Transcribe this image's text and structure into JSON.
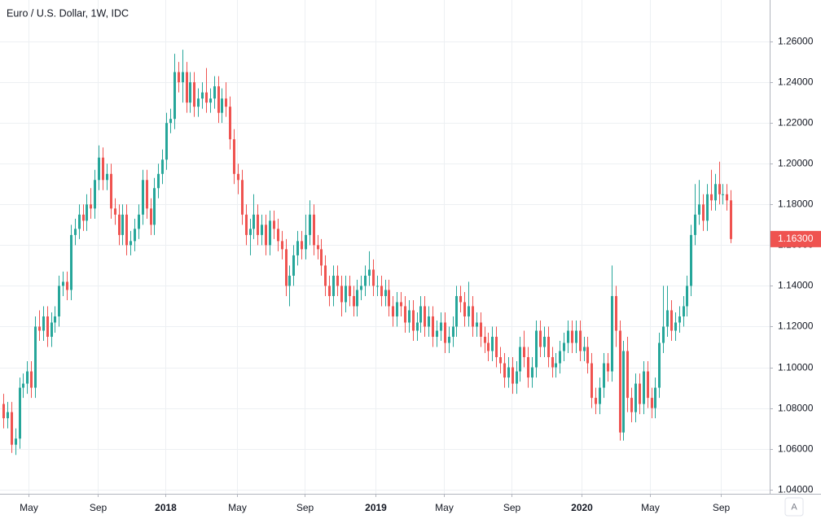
{
  "chart_data": {
    "type": "candlestick",
    "title": "Euro / U.S. Dollar, 1W, IDC",
    "up_color": "#26a69a",
    "down_color": "#ef5350",
    "grid": true,
    "xlim": [
      -0.82,
      192.8
    ],
    "xticks": [
      {
        "value": 6.4,
        "label": "May"
      },
      {
        "value": 23.8,
        "label": "Sep"
      },
      {
        "value": 40.8,
        "label": "2018"
      },
      {
        "value": 58.8,
        "label": "May"
      },
      {
        "value": 75.8,
        "label": "Sep"
      },
      {
        "value": 93.6,
        "label": "2019"
      },
      {
        "value": 110.9,
        "label": "May"
      },
      {
        "value": 127.9,
        "label": "Sep"
      },
      {
        "value": 145.5,
        "label": "2020"
      },
      {
        "value": 162.7,
        "label": "May"
      },
      {
        "value": 180.5,
        "label": "Sep"
      }
    ],
    "ylim": [
      1.0379,
      1.2804
    ],
    "yticks": [
      {
        "value": 1.04,
        "label": "1.04000"
      },
      {
        "value": 1.06,
        "label": "1.06000"
      },
      {
        "value": 1.08,
        "label": "1.08000"
      },
      {
        "value": 1.1,
        "label": "1.10000"
      },
      {
        "value": 1.12,
        "label": "1.12000"
      },
      {
        "value": 1.14,
        "label": "1.14000"
      },
      {
        "value": 1.16,
        "label": "1.16000"
      },
      {
        "value": 1.18,
        "label": "1.18000"
      },
      {
        "value": 1.2,
        "label": "1.20000"
      },
      {
        "value": 1.22,
        "label": "1.22000"
      },
      {
        "value": 1.24,
        "label": "1.24000"
      },
      {
        "value": 1.26,
        "label": "1.26000"
      }
    ],
    "last_price": {
      "value": 1.163,
      "label": "1.16300"
    },
    "open": [
      1.082,
      1.075,
      1.078,
      1.062,
      1.065,
      1.09,
      1.092,
      1.098,
      1.09,
      1.12,
      1.118,
      1.125,
      1.115,
      1.122,
      1.125,
      1.14,
      1.142,
      1.138,
      1.165,
      1.168,
      1.175,
      1.172,
      1.18,
      1.178,
      1.192,
      1.203,
      1.192,
      1.195,
      1.178,
      1.175,
      1.165,
      1.175,
      1.16,
      1.162,
      1.168,
      1.175,
      1.192,
      1.178,
      1.17,
      1.188,
      1.195,
      1.202,
      1.22,
      1.222,
      1.245,
      1.24,
      1.245,
      1.23,
      1.24,
      1.228,
      1.232,
      1.235,
      1.23,
      1.232,
      1.238,
      1.225,
      1.232,
      1.228,
      1.212,
      1.195,
      1.192,
      1.175,
      1.165,
      1.168,
      1.175,
      1.165,
      1.17,
      1.16,
      1.172,
      1.168,
      1.162,
      1.158,
      1.14,
      1.145,
      1.155,
      1.162,
      1.158,
      1.165,
      1.175,
      1.16,
      1.158,
      1.15,
      1.14,
      1.135,
      1.145,
      1.14,
      1.132,
      1.14,
      1.135,
      1.13,
      1.138,
      1.14,
      1.145,
      1.148,
      1.14,
      1.14,
      1.135,
      1.138,
      1.13,
      1.125,
      1.132,
      1.13,
      1.122,
      1.128,
      1.118,
      1.122,
      1.13,
      1.12,
      1.125,
      1.115,
      1.118,
      1.122,
      1.112,
      1.115,
      1.12,
      1.135,
      1.132,
      1.125,
      1.13,
      1.12,
      1.122,
      1.115,
      1.112,
      1.108,
      1.115,
      1.105,
      1.102,
      1.095,
      1.1,
      1.092,
      1.098,
      1.11,
      1.105,
      1.095,
      1.1,
      1.118,
      1.11,
      1.115,
      1.105,
      1.1,
      1.102,
      1.108,
      1.112,
      1.118,
      1.112,
      1.118,
      1.108,
      1.11,
      1.102,
      1.085,
      1.082,
      1.09,
      1.102,
      1.098,
      1.135,
      1.118,
      1.068,
      1.108,
      1.085,
      1.078,
      1.092,
      1.082,
      1.098,
      1.085,
      1.08,
      1.09,
      1.112,
      1.12,
      1.128,
      1.118,
      1.122,
      1.125,
      1.13,
      1.14,
      1.165,
      1.175,
      1.18,
      1.172,
      1.185,
      1.182,
      1.19,
      1.185,
      1.185,
      1.182
    ],
    "high": [
      1.087,
      1.083,
      1.083,
      1.07,
      1.095,
      1.097,
      1.103,
      1.103,
      1.125,
      1.128,
      1.13,
      1.13,
      1.127,
      1.13,
      1.145,
      1.147,
      1.147,
      1.17,
      1.173,
      1.18,
      1.18,
      1.185,
      1.188,
      1.197,
      1.209,
      1.208,
      1.2,
      1.2,
      1.183,
      1.18,
      1.18,
      1.18,
      1.167,
      1.173,
      1.18,
      1.197,
      1.197,
      1.183,
      1.193,
      1.2,
      1.207,
      1.225,
      1.227,
      1.254,
      1.25,
      1.256,
      1.25,
      1.245,
      1.245,
      1.237,
      1.24,
      1.247,
      1.237,
      1.243,
      1.243,
      1.237,
      1.24,
      1.233,
      1.217,
      1.2,
      1.197,
      1.18,
      1.173,
      1.185,
      1.18,
      1.175,
      1.175,
      1.177,
      1.177,
      1.173,
      1.167,
      1.163,
      1.15,
      1.16,
      1.167,
      1.167,
      1.175,
      1.182,
      1.18,
      1.165,
      1.163,
      1.155,
      1.145,
      1.15,
      1.15,
      1.145,
      1.145,
      1.145,
      1.14,
      1.143,
      1.145,
      1.15,
      1.157,
      1.153,
      1.145,
      1.145,
      1.143,
      1.143,
      1.135,
      1.137,
      1.137,
      1.135,
      1.133,
      1.133,
      1.127,
      1.135,
      1.135,
      1.13,
      1.13,
      1.123,
      1.127,
      1.127,
      1.12,
      1.125,
      1.14,
      1.14,
      1.137,
      1.142,
      1.135,
      1.127,
      1.127,
      1.12,
      1.117,
      1.12,
      1.12,
      1.11,
      1.107,
      1.105,
      1.105,
      1.103,
      1.115,
      1.118,
      1.11,
      1.105,
      1.123,
      1.123,
      1.12,
      1.12,
      1.11,
      1.107,
      1.113,
      1.117,
      1.123,
      1.123,
      1.123,
      1.123,
      1.115,
      1.115,
      1.107,
      1.09,
      1.095,
      1.107,
      1.107,
      1.15,
      1.14,
      1.123,
      1.113,
      1.115,
      1.09,
      1.097,
      1.097,
      1.103,
      1.103,
      1.09,
      1.095,
      1.117,
      1.14,
      1.14,
      1.133,
      1.127,
      1.13,
      1.135,
      1.145,
      1.17,
      1.19,
      1.192,
      1.185,
      1.19,
      1.197,
      1.195,
      1.201,
      1.19,
      1.19,
      1.187
    ],
    "low": [
      1.07,
      1.07,
      1.058,
      1.057,
      1.06,
      1.085,
      1.087,
      1.085,
      1.085,
      1.113,
      1.113,
      1.11,
      1.11,
      1.117,
      1.12,
      1.135,
      1.133,
      1.133,
      1.16,
      1.163,
      1.167,
      1.167,
      1.173,
      1.173,
      1.187,
      1.187,
      1.187,
      1.173,
      1.17,
      1.16,
      1.16,
      1.155,
      1.155,
      1.157,
      1.163,
      1.17,
      1.173,
      1.165,
      1.165,
      1.183,
      1.19,
      1.197,
      1.215,
      1.217,
      1.235,
      1.23,
      1.225,
      1.225,
      1.223,
      1.223,
      1.227,
      1.225,
      1.225,
      1.227,
      1.22,
      1.22,
      1.223,
      1.207,
      1.19,
      1.185,
      1.17,
      1.16,
      1.155,
      1.163,
      1.16,
      1.16,
      1.155,
      1.155,
      1.163,
      1.157,
      1.153,
      1.135,
      1.13,
      1.14,
      1.15,
      1.153,
      1.153,
      1.16,
      1.155,
      1.153,
      1.145,
      1.135,
      1.13,
      1.13,
      1.135,
      1.125,
      1.127,
      1.13,
      1.125,
      1.125,
      1.133,
      1.135,
      1.14,
      1.135,
      1.135,
      1.13,
      1.13,
      1.125,
      1.12,
      1.12,
      1.125,
      1.117,
      1.117,
      1.113,
      1.113,
      1.117,
      1.115,
      1.115,
      1.11,
      1.11,
      1.113,
      1.107,
      1.107,
      1.11,
      1.115,
      1.127,
      1.12,
      1.12,
      1.115,
      1.115,
      1.11,
      1.107,
      1.103,
      1.103,
      1.1,
      1.097,
      1.09,
      1.09,
      1.087,
      1.087,
      1.093,
      1.1,
      1.09,
      1.09,
      1.095,
      1.105,
      1.105,
      1.1,
      1.095,
      1.095,
      1.097,
      1.103,
      1.107,
      1.107,
      1.107,
      1.103,
      1.103,
      1.097,
      1.08,
      1.077,
      1.077,
      1.085,
      1.093,
      1.093,
      1.11,
      1.064,
      1.064,
      1.078,
      1.073,
      1.073,
      1.077,
      1.077,
      1.08,
      1.075,
      1.075,
      1.085,
      1.107,
      1.115,
      1.113,
      1.113,
      1.117,
      1.12,
      1.125,
      1.135,
      1.16,
      1.17,
      1.167,
      1.167,
      1.177,
      1.177,
      1.18,
      1.18,
      1.177,
      1.161
    ],
    "close": [
      1.075,
      1.078,
      1.062,
      1.065,
      1.09,
      1.092,
      1.098,
      1.09,
      1.12,
      1.118,
      1.125,
      1.115,
      1.122,
      1.125,
      1.14,
      1.142,
      1.138,
      1.165,
      1.168,
      1.175,
      1.172,
      1.18,
      1.178,
      1.192,
      1.203,
      1.192,
      1.195,
      1.178,
      1.175,
      1.165,
      1.175,
      1.16,
      1.162,
      1.168,
      1.175,
      1.192,
      1.178,
      1.17,
      1.188,
      1.195,
      1.202,
      1.22,
      1.222,
      1.245,
      1.24,
      1.245,
      1.23,
      1.24,
      1.228,
      1.232,
      1.235,
      1.23,
      1.232,
      1.238,
      1.225,
      1.232,
      1.228,
      1.212,
      1.195,
      1.192,
      1.175,
      1.165,
      1.168,
      1.175,
      1.165,
      1.17,
      1.16,
      1.172,
      1.168,
      1.162,
      1.158,
      1.14,
      1.145,
      1.155,
      1.162,
      1.158,
      1.165,
      1.175,
      1.16,
      1.158,
      1.15,
      1.14,
      1.135,
      1.145,
      1.14,
      1.132,
      1.14,
      1.135,
      1.13,
      1.138,
      1.14,
      1.145,
      1.148,
      1.14,
      1.14,
      1.135,
      1.138,
      1.13,
      1.125,
      1.132,
      1.13,
      1.122,
      1.128,
      1.118,
      1.122,
      1.13,
      1.12,
      1.125,
      1.115,
      1.118,
      1.122,
      1.112,
      1.115,
      1.12,
      1.135,
      1.132,
      1.125,
      1.13,
      1.12,
      1.122,
      1.115,
      1.112,
      1.108,
      1.115,
      1.105,
      1.102,
      1.095,
      1.1,
      1.092,
      1.098,
      1.11,
      1.105,
      1.095,
      1.1,
      1.118,
      1.11,
      1.115,
      1.105,
      1.1,
      1.102,
      1.108,
      1.112,
      1.118,
      1.112,
      1.118,
      1.108,
      1.11,
      1.102,
      1.085,
      1.082,
      1.09,
      1.102,
      1.098,
      1.135,
      1.118,
      1.068,
      1.108,
      1.085,
      1.078,
      1.092,
      1.082,
      1.098,
      1.085,
      1.08,
      1.09,
      1.112,
      1.12,
      1.128,
      1.118,
      1.122,
      1.125,
      1.13,
      1.14,
      1.165,
      1.175,
      1.18,
      1.172,
      1.185,
      1.182,
      1.19,
      1.185,
      1.185,
      1.182,
      1.163
    ]
  },
  "controls": {
    "auto": "A"
  }
}
